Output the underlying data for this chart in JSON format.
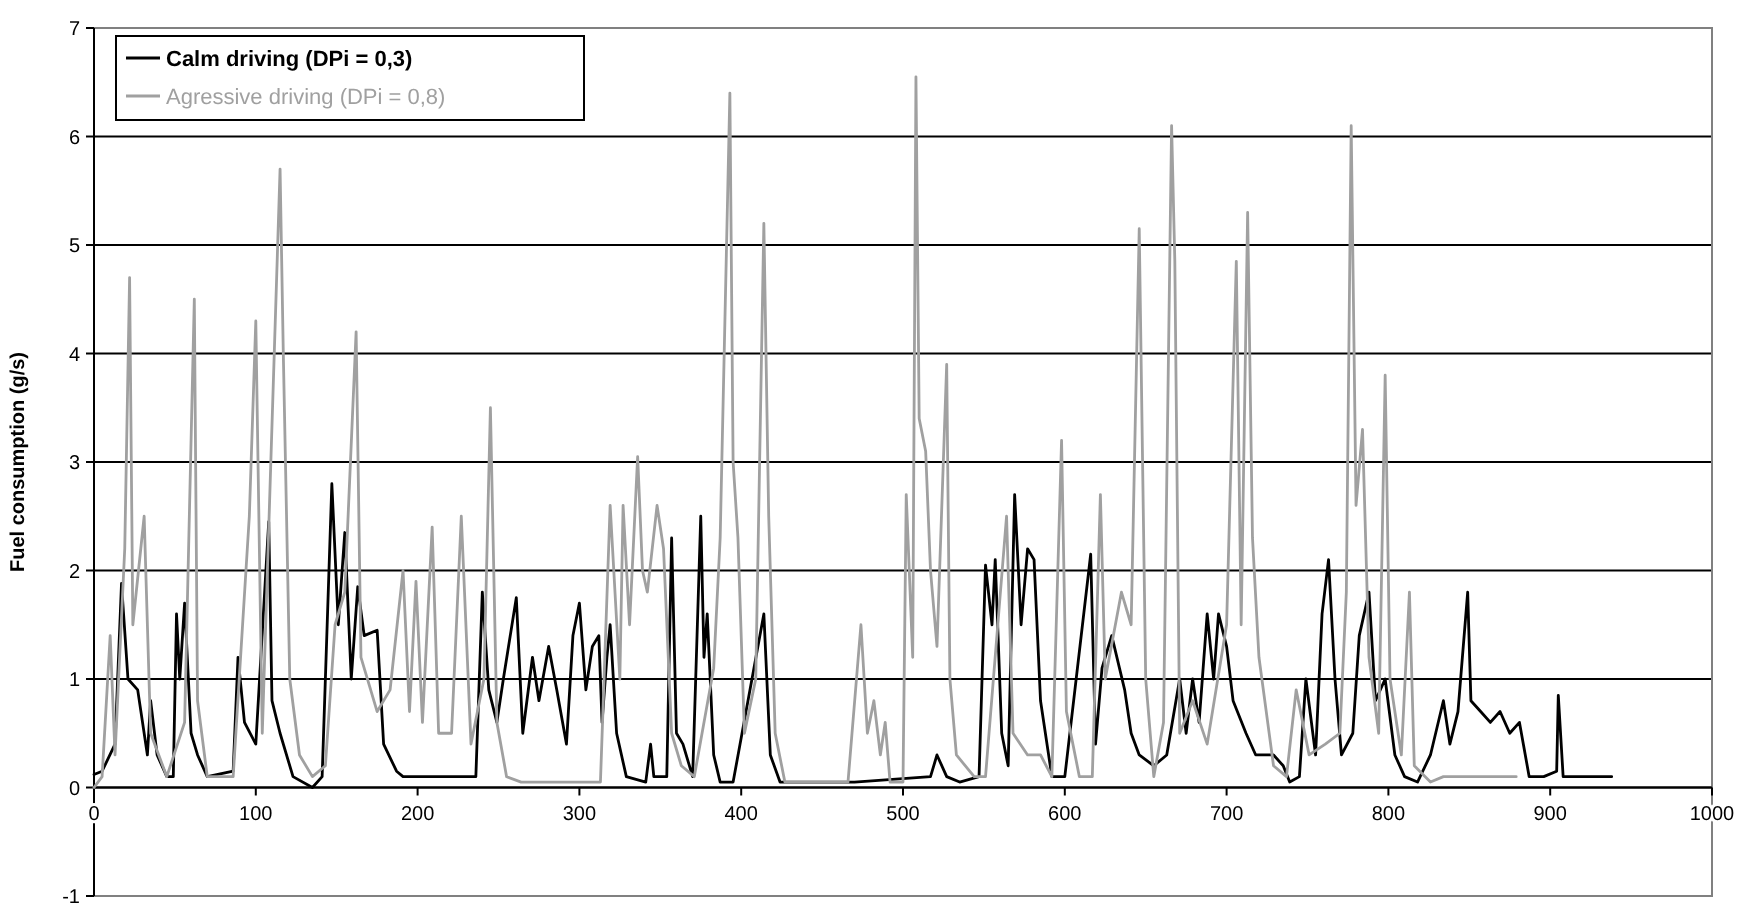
{
  "chart_data": {
    "type": "line",
    "ylabel": "Fuel consumption (g/s)",
    "xlim": [
      0,
      1000
    ],
    "xticks": [
      0,
      100,
      200,
      300,
      400,
      500,
      600,
      700,
      800,
      900,
      1000
    ],
    "ylim": [
      -1,
      7
    ],
    "yticks": [
      -1,
      0,
      1,
      2,
      3,
      4,
      5,
      6,
      7
    ],
    "grid": "y",
    "legend": "top left",
    "line_style": "solid",
    "series": [
      {
        "name": "Calm driving (DPi = 0,3)",
        "color": "#000000",
        "x": [
          0,
          5,
          13,
          17,
          21,
          27,
          33,
          35,
          39,
          45,
          49,
          51,
          53,
          56,
          60,
          64,
          70,
          86,
          89,
          93,
          100,
          108,
          110,
          115,
          123,
          135,
          141,
          147,
          151,
          155,
          159,
          163,
          167,
          175,
          179,
          187,
          191,
          236,
          240,
          244,
          249,
          253,
          261,
          265,
          271,
          275,
          281,
          286,
          292,
          296,
          300,
          304,
          308,
          312,
          314,
          317,
          319,
          323,
          329,
          341,
          344,
          346,
          354,
          357,
          360,
          364,
          370,
          375,
          377,
          379,
          383,
          387,
          395,
          414,
          418,
          424,
          470,
          517,
          521,
          527,
          535,
          547,
          551,
          555,
          557,
          561,
          565,
          569,
          573,
          577,
          581,
          585,
          592,
          600,
          616,
          619,
          623,
          629,
          637,
          641,
          646,
          655,
          663,
          671,
          675,
          679,
          683,
          688,
          692,
          695,
          700,
          704,
          712,
          718,
          729,
          735,
          739,
          745,
          749,
          755,
          759,
          763,
          767,
          771,
          778,
          782,
          788,
          792,
          798,
          804,
          810,
          818,
          826,
          834,
          838,
          843,
          849,
          851,
          857,
          863,
          869,
          875,
          881,
          887,
          896,
          904,
          905,
          908,
          938
        ],
        "values": [
          0.12,
          0.15,
          0.4,
          1.88,
          1.0,
          0.9,
          0.3,
          0.8,
          0.3,
          0.1,
          0.1,
          1.6,
          1.0,
          1.7,
          0.5,
          0.3,
          0.1,
          0.15,
          1.2,
          0.6,
          0.4,
          2.45,
          0.8,
          0.5,
          0.1,
          0.0,
          0.1,
          2.8,
          1.5,
          2.35,
          1.0,
          1.85,
          1.4,
          1.45,
          0.4,
          0.15,
          0.1,
          0.1,
          1.8,
          0.9,
          0.6,
          1.0,
          1.75,
          0.5,
          1.2,
          0.8,
          1.3,
          0.9,
          0.4,
          1.4,
          1.7,
          0.9,
          1.3,
          1.4,
          0.6,
          1.2,
          1.5,
          0.5,
          0.1,
          0.05,
          0.4,
          0.1,
          0.1,
          2.3,
          0.5,
          0.4,
          0.1,
          2.5,
          1.2,
          1.6,
          0.3,
          0.05,
          0.05,
          1.6,
          0.3,
          0.05,
          0.05,
          0.1,
          0.3,
          0.1,
          0.05,
          0.1,
          2.05,
          1.5,
          2.1,
          0.5,
          0.2,
          2.7,
          1.5,
          2.2,
          2.1,
          0.8,
          0.1,
          0.1,
          2.15,
          0.4,
          1.1,
          1.4,
          0.9,
          0.5,
          0.3,
          0.2,
          0.3,
          1.0,
          0.5,
          1.0,
          0.6,
          1.6,
          1.0,
          1.6,
          1.3,
          0.8,
          0.5,
          0.3,
          0.3,
          0.2,
          0.05,
          0.1,
          1.0,
          0.3,
          1.6,
          2.1,
          1.0,
          0.3,
          0.5,
          1.4,
          1.8,
          0.8,
          1.0,
          0.3,
          0.1,
          0.05,
          0.3,
          0.8,
          0.4,
          0.7,
          1.8,
          0.8,
          0.7,
          0.6,
          0.7,
          0.5,
          0.6,
          0.1,
          0.1,
          0.15,
          0.85,
          0.1,
          0.1
        ]
      },
      {
        "name": "Agressive driving (DPi = 0,8)",
        "color": "#a0a0a0",
        "x": [
          0,
          5,
          10,
          13,
          19,
          22,
          24,
          31,
          35,
          45,
          56,
          62,
          64,
          70,
          86,
          96,
          100,
          104,
          115,
          117,
          121,
          127,
          135,
          143,
          149,
          155,
          162,
          165,
          175,
          183,
          191,
          195,
          199,
          203,
          209,
          213,
          221,
          227,
          233,
          241,
          245,
          249,
          255,
          264,
          313,
          319,
          325,
          327,
          331,
          336,
          339,
          342,
          348,
          352,
          357,
          363,
          371,
          383,
          387,
          393,
          395,
          398,
          402,
          409,
          414,
          417,
          421,
          427,
          466,
          474,
          478,
          482,
          486,
          489,
          492,
          500,
          502,
          506,
          508,
          510,
          514,
          517,
          521,
          527,
          529,
          533,
          544,
          551,
          564,
          568,
          577,
          585,
          592,
          598,
          601,
          609,
          617,
          622,
          625,
          635,
          641,
          646,
          650,
          655,
          661,
          666,
          668,
          671,
          679,
          688,
          700,
          706,
          709,
          713,
          716,
          720,
          729,
          737,
          743,
          751,
          761,
          770,
          774,
          777,
          780,
          784,
          788,
          794,
          798,
          801,
          808,
          813,
          816,
          826,
          834,
          879
        ],
        "values": [
          0.0,
          0.1,
          1.4,
          0.3,
          2.2,
          4.7,
          1.5,
          2.5,
          0.5,
          0.1,
          0.6,
          4.5,
          0.8,
          0.1,
          0.1,
          2.5,
          4.3,
          0.5,
          5.7,
          4.0,
          1.0,
          0.3,
          0.1,
          0.2,
          1.5,
          1.8,
          4.2,
          1.2,
          0.7,
          0.9,
          2.0,
          0.7,
          1.9,
          0.6,
          2.4,
          0.5,
          0.5,
          2.5,
          0.4,
          1.0,
          3.5,
          0.6,
          0.1,
          0.05,
          0.05,
          2.6,
          1.0,
          2.6,
          1.5,
          3.05,
          2.0,
          1.8,
          2.6,
          2.2,
          0.5,
          0.2,
          0.1,
          1.1,
          2.3,
          6.4,
          3.0,
          2.3,
          0.5,
          1.0,
          5.2,
          2.5,
          0.5,
          0.05,
          0.05,
          1.5,
          0.5,
          0.8,
          0.3,
          0.6,
          0.05,
          0.05,
          2.7,
          1.2,
          6.55,
          3.4,
          3.1,
          2.0,
          1.3,
          3.9,
          1.0,
          0.3,
          0.1,
          0.1,
          2.5,
          0.5,
          0.3,
          0.3,
          0.1,
          3.2,
          0.7,
          0.1,
          0.1,
          2.7,
          1.0,
          1.8,
          1.5,
          5.15,
          1.0,
          0.1,
          0.6,
          6.1,
          4.85,
          0.5,
          0.8,
          0.4,
          1.5,
          4.85,
          1.5,
          5.3,
          2.3,
          1.2,
          0.2,
          0.1,
          0.9,
          0.3,
          0.4,
          0.5,
          1.8,
          6.1,
          2.6,
          3.3,
          1.2,
          0.5,
          3.8,
          1.0,
          0.3,
          1.8,
          0.2,
          0.05,
          0.1,
          0.1
        ]
      }
    ]
  }
}
